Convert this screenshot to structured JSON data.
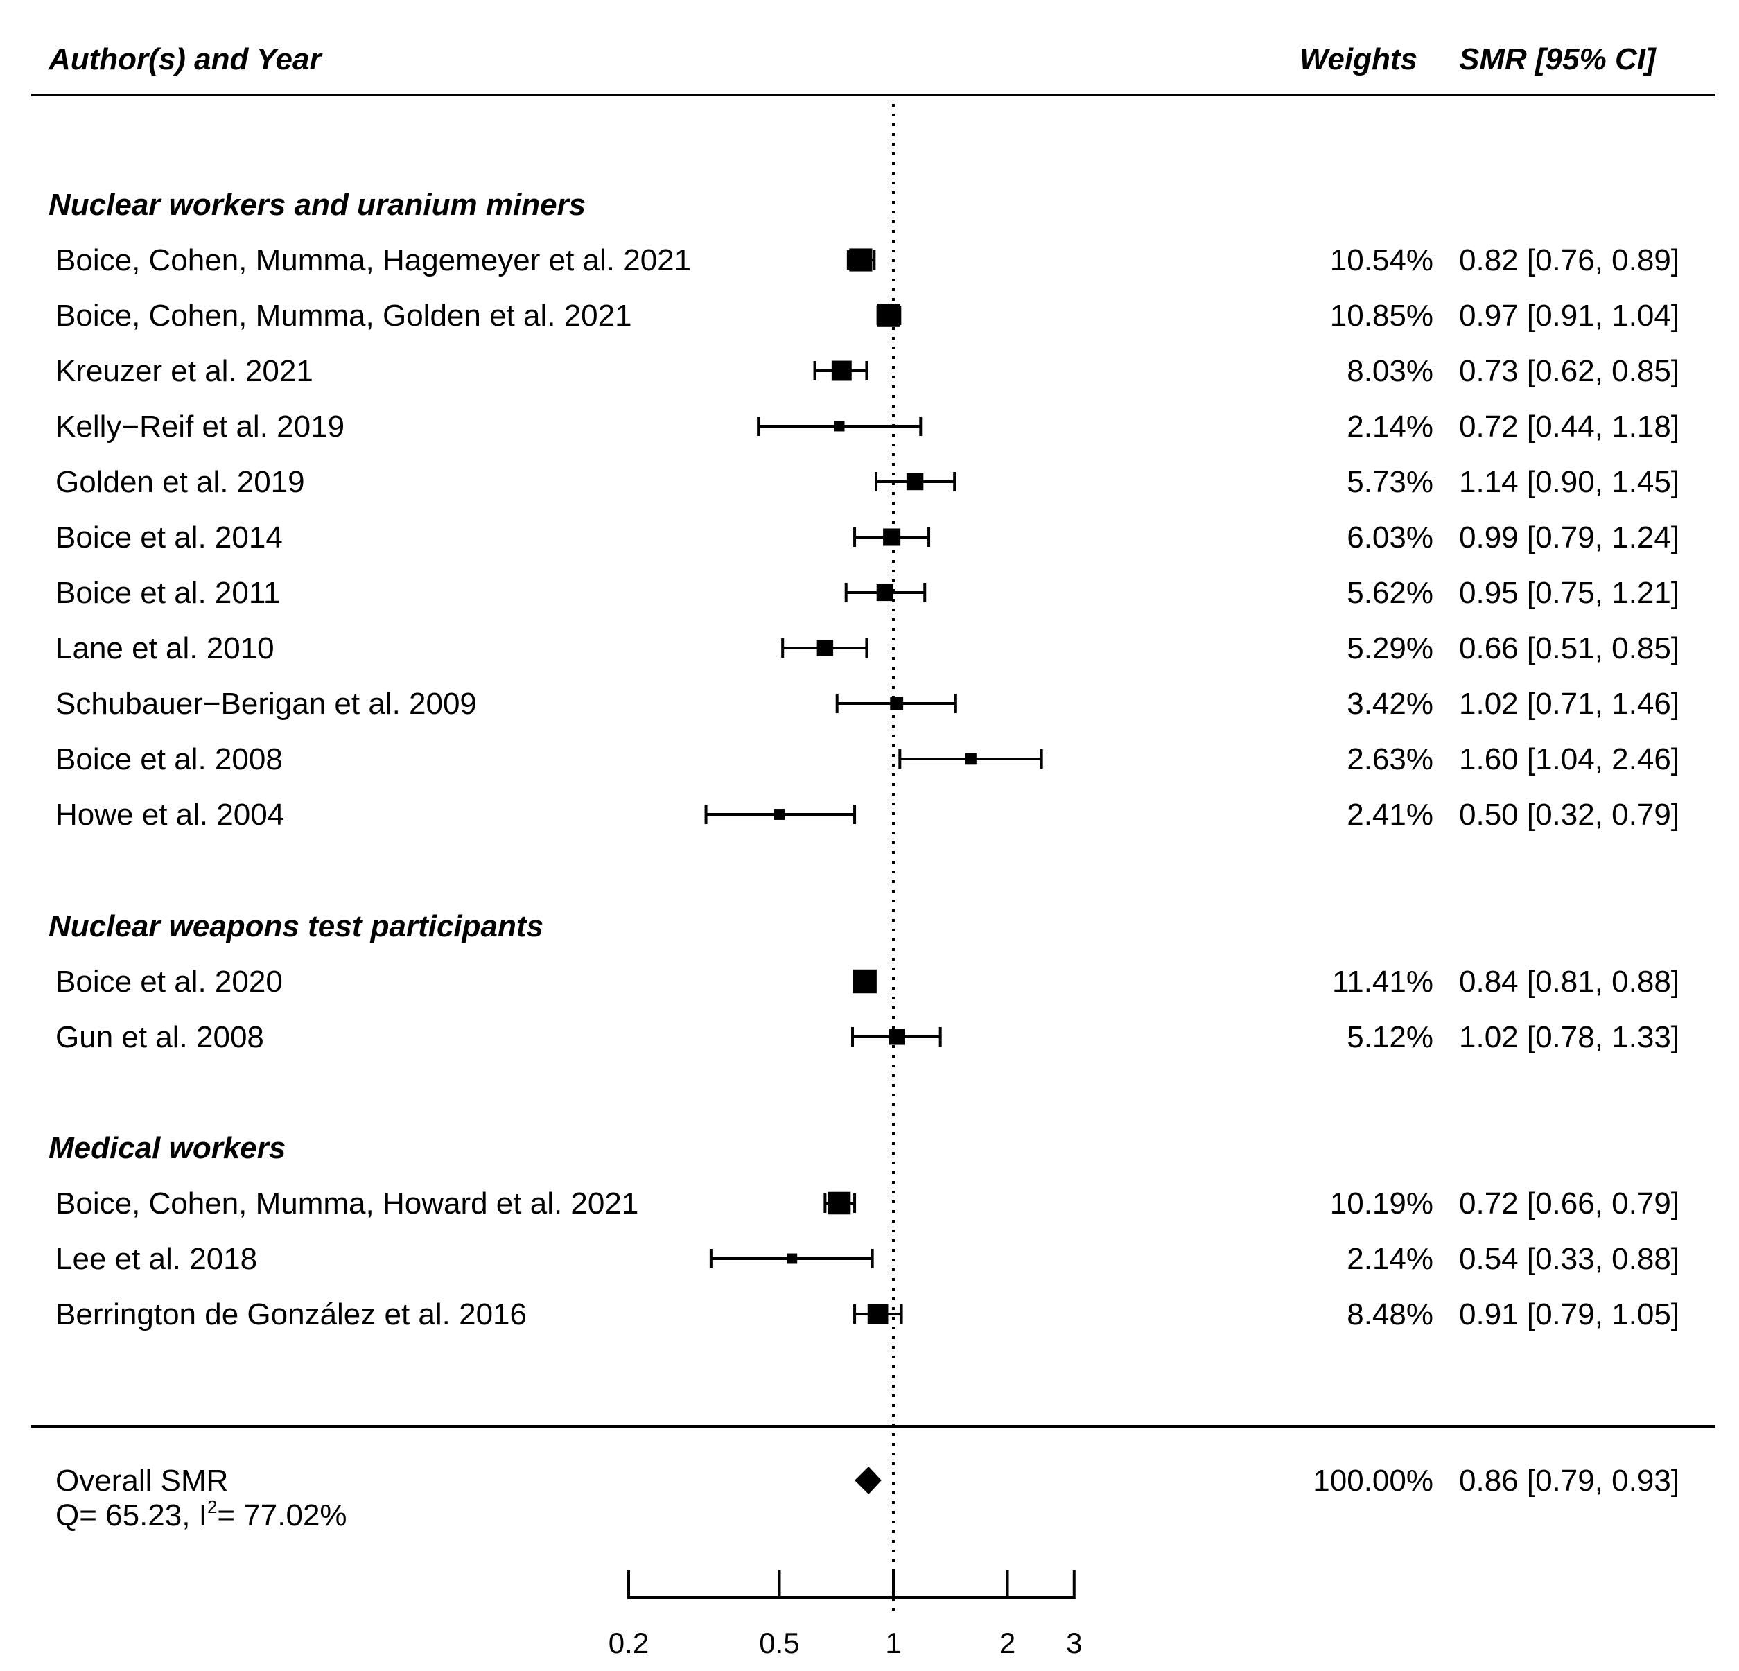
{
  "headers": {
    "study": "Author(s) and Year",
    "weights": "Weights",
    "effect": "SMR [95% CI]"
  },
  "chart_data": {
    "type": "forest",
    "scale": "log",
    "reference_value": 1,
    "xlim": [
      0.2,
      3
    ],
    "x_ticks": [
      0.2,
      0.5,
      1,
      2,
      3
    ],
    "x_tick_labels": [
      "0.2",
      "0.5",
      "1",
      "2",
      "3"
    ],
    "groups": [
      {
        "name": "Nuclear workers and uranium miners",
        "studies": [
          {
            "label": "Boice, Cohen, Mumma, Hagemeyer et al. 2021",
            "weight": 10.54,
            "weight_text": "10.54%",
            "smr": 0.82,
            "lo": 0.76,
            "hi": 0.89,
            "ci_text": "0.82 [0.76, 0.89]"
          },
          {
            "label": "Boice, Cohen, Mumma, Golden et al. 2021",
            "weight": 10.85,
            "weight_text": "10.85%",
            "smr": 0.97,
            "lo": 0.91,
            "hi": 1.04,
            "ci_text": "0.97 [0.91, 1.04]"
          },
          {
            "label": "Kreuzer et al. 2021",
            "weight": 8.03,
            "weight_text": "8.03%",
            "smr": 0.73,
            "lo": 0.62,
            "hi": 0.85,
            "ci_text": "0.73 [0.62, 0.85]"
          },
          {
            "label": "Kelly−Reif et al. 2019",
            "weight": 2.14,
            "weight_text": "2.14%",
            "smr": 0.72,
            "lo": 0.44,
            "hi": 1.18,
            "ci_text": "0.72 [0.44, 1.18]"
          },
          {
            "label": "Golden et al. 2019",
            "weight": 5.73,
            "weight_text": "5.73%",
            "smr": 1.14,
            "lo": 0.9,
            "hi": 1.45,
            "ci_text": "1.14 [0.90, 1.45]"
          },
          {
            "label": "Boice et al. 2014",
            "weight": 6.03,
            "weight_text": "6.03%",
            "smr": 0.99,
            "lo": 0.79,
            "hi": 1.24,
            "ci_text": "0.99 [0.79, 1.24]"
          },
          {
            "label": "Boice et al. 2011",
            "weight": 5.62,
            "weight_text": "5.62%",
            "smr": 0.95,
            "lo": 0.75,
            "hi": 1.21,
            "ci_text": "0.95 [0.75, 1.21]"
          },
          {
            "label": "Lane et al. 2010",
            "weight": 5.29,
            "weight_text": "5.29%",
            "smr": 0.66,
            "lo": 0.51,
            "hi": 0.85,
            "ci_text": "0.66 [0.51, 0.85]"
          },
          {
            "label": "Schubauer−Berigan et al. 2009",
            "weight": 3.42,
            "weight_text": "3.42%",
            "smr": 1.02,
            "lo": 0.71,
            "hi": 1.46,
            "ci_text": "1.02 [0.71, 1.46]"
          },
          {
            "label": "Boice et al. 2008",
            "weight": 2.63,
            "weight_text": "2.63%",
            "smr": 1.6,
            "lo": 1.04,
            "hi": 2.46,
            "ci_text": "1.60 [1.04, 2.46]"
          },
          {
            "label": "Howe et al. 2004",
            "weight": 2.41,
            "weight_text": "2.41%",
            "smr": 0.5,
            "lo": 0.32,
            "hi": 0.79,
            "ci_text": "0.50 [0.32, 0.79]"
          }
        ]
      },
      {
        "name": "Nuclear weapons test participants",
        "studies": [
          {
            "label": "Boice et al. 2020",
            "weight": 11.41,
            "weight_text": "11.41%",
            "smr": 0.84,
            "lo": 0.81,
            "hi": 0.88,
            "ci_text": "0.84 [0.81, 0.88]"
          },
          {
            "label": "Gun et al. 2008",
            "weight": 5.12,
            "weight_text": "5.12%",
            "smr": 1.02,
            "lo": 0.78,
            "hi": 1.33,
            "ci_text": "1.02 [0.78, 1.33]"
          }
        ]
      },
      {
        "name": "Medical workers",
        "studies": [
          {
            "label": "Boice, Cohen, Mumma, Howard et al. 2021",
            "weight": 10.19,
            "weight_text": "10.19%",
            "smr": 0.72,
            "lo": 0.66,
            "hi": 0.79,
            "ci_text": "0.72 [0.66, 0.79]"
          },
          {
            "label": "Lee et al. 2018",
            "weight": 2.14,
            "weight_text": "2.14%",
            "smr": 0.54,
            "lo": 0.33,
            "hi": 0.88,
            "ci_text": "0.54 [0.33, 0.88]"
          },
          {
            "label": "Berrington de González et al. 2016",
            "weight": 8.48,
            "weight_text": "8.48%",
            "smr": 0.91,
            "lo": 0.79,
            "hi": 1.05,
            "ci_text": "0.91 [0.79, 1.05]"
          }
        ]
      }
    ],
    "overall": {
      "label": "Overall SMR",
      "weight_text": "100.00%",
      "smr": 0.86,
      "lo": 0.79,
      "hi": 0.93,
      "ci_text": "0.86 [0.79, 0.93]",
      "heterogeneity": {
        "q_text": "Q= 65.23, I",
        "sup": "2",
        "i2_text": "= 77.02%"
      }
    }
  }
}
